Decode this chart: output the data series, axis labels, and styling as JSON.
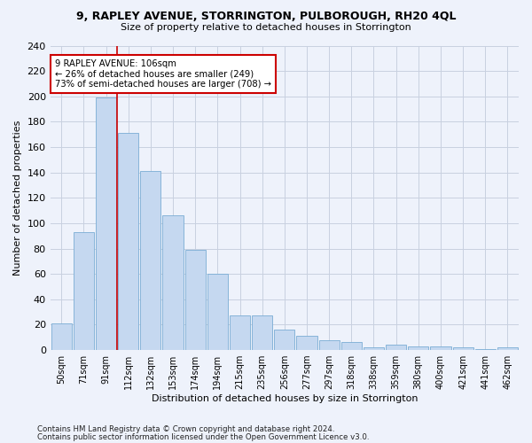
{
  "title": "9, RAPLEY AVENUE, STORRINGTON, PULBOROUGH, RH20 4QL",
  "subtitle": "Size of property relative to detached houses in Storrington",
  "xlabel": "Distribution of detached houses by size in Storrington",
  "ylabel": "Number of detached properties",
  "categories": [
    "50sqm",
    "71sqm",
    "91sqm",
    "112sqm",
    "132sqm",
    "153sqm",
    "174sqm",
    "194sqm",
    "215sqm",
    "235sqm",
    "256sqm",
    "277sqm",
    "297sqm",
    "318sqm",
    "338sqm",
    "359sqm",
    "380sqm",
    "400sqm",
    "421sqm",
    "441sqm",
    "462sqm"
  ],
  "values": [
    21,
    93,
    199,
    171,
    141,
    106,
    79,
    60,
    27,
    27,
    16,
    11,
    8,
    6,
    2,
    4,
    3,
    3,
    2,
    1,
    2
  ],
  "bar_color": "#c5d8f0",
  "bar_edge_color": "#7aadd4",
  "background_color": "#eef2fb",
  "grid_color": "#c8d0e0",
  "vline_x_index": 2.5,
  "vline_color": "#cc0000",
  "annotation_line1": "9 RAPLEY AVENUE: 106sqm",
  "annotation_line2": "← 26% of detached houses are smaller (249)",
  "annotation_line3": "73% of semi-detached houses are larger (708) →",
  "annotation_box_color": "#ffffff",
  "annotation_box_edge": "#cc0000",
  "ylim": [
    0,
    240
  ],
  "yticks": [
    0,
    20,
    40,
    60,
    80,
    100,
    120,
    140,
    160,
    180,
    200,
    220,
    240
  ],
  "footer1": "Contains HM Land Registry data © Crown copyright and database right 2024.",
  "footer2": "Contains public sector information licensed under the Open Government Licence v3.0."
}
